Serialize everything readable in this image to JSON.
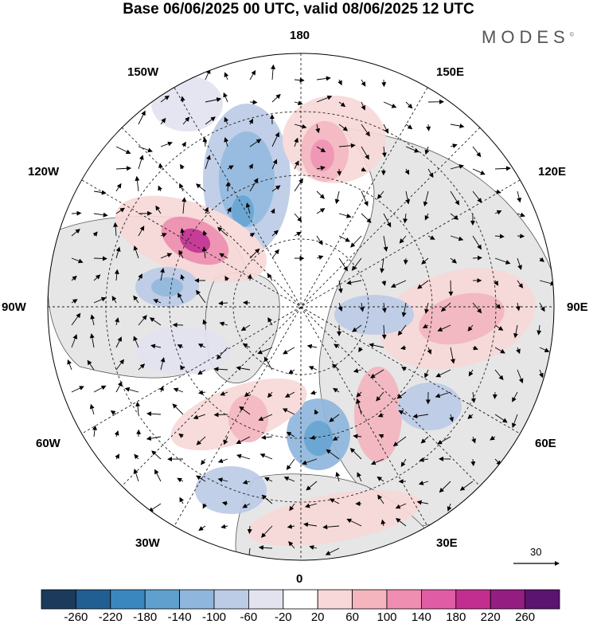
{
  "title": "Base 06/06/2025 00 UTC, valid 08/06/2025 12 UTC",
  "brand": "MODES",
  "brand_mark": "©",
  "longitude_labels": {
    "top": "180",
    "bottom": "0",
    "left": "90W",
    "right": "90E",
    "upper_left_far": "150W",
    "upper_left_near": "120W",
    "upper_right_far": "150E",
    "upper_right_near": "120E",
    "lower_left_near": "60W",
    "lower_left_far": "30W",
    "lower_right_near": "60E",
    "lower_right_far": "30E"
  },
  "reference_vector": {
    "value": "30"
  },
  "colorbar": {
    "ticks": [
      "-260",
      "-220",
      "-180",
      "-140",
      "-100",
      "-60",
      "-20",
      "20",
      "60",
      "100",
      "140",
      "180",
      "220",
      "260"
    ],
    "colors": [
      "#1b3a5c",
      "#215f93",
      "#3a87c0",
      "#5fa0cf",
      "#8fb6dd",
      "#bccbe6",
      "#e3e3f0",
      "#ffffff",
      "#f8d8d8",
      "#f4b5bf",
      "#ef8eb0",
      "#e05ca4",
      "#c22e8f",
      "#941d82",
      "#5b1470"
    ]
  },
  "map": {
    "projection": "polar-stereographic-north",
    "land_color": "#e8e8e8",
    "ocean_color": "#ffffff",
    "graticule": "dashed",
    "overlay": "wind-vectors"
  }
}
